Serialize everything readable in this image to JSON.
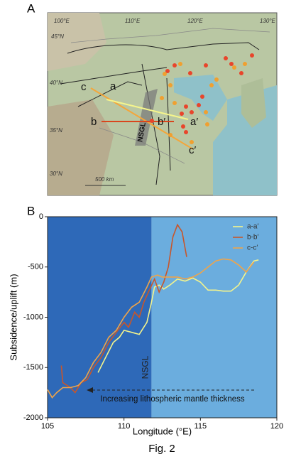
{
  "panel_a": {
    "label": "A",
    "map_labels": {
      "lon": [
        "100°E",
        "110°E",
        "120°E",
        "130°E"
      ],
      "lat": [
        "45°N",
        "40°N",
        "35°N",
        "30°N"
      ],
      "scale": "500 km",
      "profiles": [
        "a",
        "b",
        "c",
        "a′",
        "b′",
        "c′"
      ],
      "belt": "NSGL"
    }
  },
  "panel_b": {
    "label": "B"
  },
  "caption": "Fig. 2",
  "chart_data": {
    "type": "line",
    "x_label": "Longitude (°E)",
    "y_label": "Subsidence/uplift (m)",
    "xlim": [
      105,
      120
    ],
    "ylim": [
      -2000,
      0
    ],
    "xticks": [
      105,
      110,
      115,
      120
    ],
    "yticks": [
      0,
      -500,
      -1000,
      -1500,
      -2000
    ],
    "regions": [
      {
        "xlim": [
          105,
          111.8
        ],
        "color": "#2e69b8"
      },
      {
        "xlim": [
          111.8,
          120
        ],
        "color": "#6badde"
      }
    ],
    "annotations": [
      "NSGL",
      "Increasing lithospheric mantle thickness"
    ],
    "legend": "upper right",
    "series": [
      {
        "name": "a-a′",
        "color": "#f4f48c",
        "x": [
          108.3,
          108.8,
          109.3,
          109.7,
          110,
          110.5,
          111,
          111.5,
          111.8,
          112,
          112.3,
          112.6,
          113,
          113.5,
          114,
          114.5,
          115,
          115.5,
          116,
          116.5,
          117,
          117.5,
          118,
          118.5,
          118.8
        ],
        "values": [
          -1550,
          -1400,
          -1250,
          -1200,
          -1130,
          -1150,
          -1170,
          -1050,
          -850,
          -700,
          -680,
          -720,
          -680,
          -620,
          -640,
          -610,
          -650,
          -730,
          -730,
          -740,
          -740,
          -680,
          -550,
          -440,
          -430
        ]
      },
      {
        "name": "b-b′",
        "color": "#c8562a",
        "x": [
          105.9,
          106,
          106.5,
          106.8,
          107.2,
          107.6,
          108,
          108.5,
          109,
          109.5,
          110,
          110.3,
          110.7,
          111,
          111.3,
          111.6,
          112,
          112.3,
          112.6,
          112.9,
          113.2,
          113.5,
          113.8,
          114.1
        ],
        "values": [
          -1480,
          -1650,
          -1700,
          -1750,
          -1650,
          -1620,
          -1500,
          -1400,
          -1250,
          -1150,
          -1050,
          -1100,
          -950,
          -1000,
          -850,
          -750,
          -620,
          -750,
          -650,
          -500,
          -200,
          -80,
          -150,
          -400
        ]
      },
      {
        "name": "c-c′",
        "color": "#f0a448",
        "x": [
          105,
          105.3,
          105.6,
          106,
          106.5,
          107,
          107.5,
          108,
          108.5,
          109,
          109.5,
          110,
          110.5,
          111,
          111.5,
          111.8,
          112.2,
          112.5,
          113,
          113.5,
          114,
          114.5,
          115,
          115.5,
          116,
          116.5,
          117,
          117.5,
          118,
          118.5
        ],
        "values": [
          -1720,
          -1800,
          -1750,
          -1700,
          -1700,
          -1680,
          -1600,
          -1450,
          -1350,
          -1200,
          -1130,
          -1000,
          -900,
          -850,
          -700,
          -600,
          -580,
          -600,
          -600,
          -600,
          -620,
          -600,
          -560,
          -500,
          -440,
          -420,
          -430,
          -480,
          -550,
          -450
        ]
      }
    ]
  }
}
